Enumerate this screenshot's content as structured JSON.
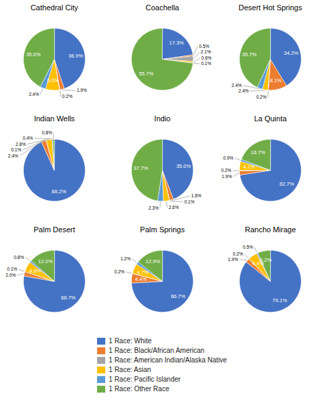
{
  "chart_data": [
    {
      "type": "pie",
      "title": "Cathedral City",
      "categories": [
        "1 Race: White",
        "1 Race: Black/African American",
        "1 Race: American Indian/Alaska Native",
        "1 Race: Asian",
        "1 Race: Pacific Islander",
        "1 Race: Other Race"
      ],
      "values": [
        36.9,
        1.9,
        0.2,
        6.0,
        2.4,
        35.0
      ],
      "value_labels": [
        "36.9%",
        "1.9%",
        "0.2%",
        "6.0%",
        "2.4%",
        "35.0%"
      ],
      "colors": [
        "#4472c4",
        "#ed7d31",
        "#a5a5a5",
        "#ffc000",
        "#5b9bd5",
        "#70ad47"
      ],
      "data_labels": true,
      "legend": "bottom"
    },
    {
      "type": "pie",
      "title": "Coachella",
      "categories": [
        "1 Race: White",
        "1 Race: Black/African American",
        "1 Race: American Indian/Alaska Native",
        "1 Race: Asian",
        "1 Race: Pacific Islander",
        "1 Race: Other Race"
      ],
      "values": [
        17.3,
        0.5,
        2.1,
        0.6,
        0.1,
        55.7
      ],
      "value_labels": [
        "17.3%",
        "0.5%",
        "2.1%",
        "0.6%",
        "0.1%",
        "55.7%"
      ],
      "colors": [
        "#4472c4",
        "#ed7d31",
        "#a5a5a5",
        "#ffc000",
        "#5b9bd5",
        "#70ad47"
      ],
      "data_labels": true,
      "legend": "bottom"
    },
    {
      "type": "pie",
      "title": "Desert Hot Springs",
      "categories": [
        "1 Race: White",
        "1 Race: Black/African American",
        "1 Race: American Indian/Alaska Native",
        "1 Race: Asian",
        "1 Race: Pacific Islander",
        "1 Race: Other Race"
      ],
      "values": [
        34.2,
        8.1,
        0.2,
        2.4,
        2.4,
        35.7
      ],
      "value_labels": [
        "34.2%",
        "8.1%",
        "0.2%",
        "2.4%",
        "2.4%",
        "35.7%"
      ],
      "colors": [
        "#4472c4",
        "#ed7d31",
        "#a5a5a5",
        "#ffc000",
        "#5b9bd5",
        "#70ad47"
      ],
      "data_labels": true,
      "legend": "bottom"
    },
    {
      "type": "pie",
      "title": "Indian Wells",
      "categories": [
        "1 Race: White",
        "1 Race: Black/African American",
        "1 Race: American Indian/Alaska Native",
        "1 Race: Asian",
        "1 Race: Pacific Islander",
        "1 Race: Other Race"
      ],
      "values": [
        88.2,
        2.4,
        0.1,
        2.8,
        0.4,
        0.8
      ],
      "value_labels": [
        "88.2%",
        "2.4%",
        "0.1%",
        "2.8%",
        "0.4%",
        "0.8%"
      ],
      "colors": [
        "#4472c4",
        "#ed7d31",
        "#a5a5a5",
        "#ffc000",
        "#5b9bd5",
        "#70ad47"
      ],
      "data_labels": true,
      "legend": "bottom"
    },
    {
      "type": "pie",
      "title": "Indio",
      "categories": [
        "1 Race: White",
        "1 Race: Black/African American",
        "1 Race: American Indian/Alaska Native",
        "1 Race: Asian",
        "1 Race: Pacific Islander",
        "1 Race: Other Race"
      ],
      "values": [
        35.0,
        1.6,
        0.1,
        2.6,
        2.3,
        37.7
      ],
      "value_labels": [
        "35.0%",
        "1.6%",
        "0.1%",
        "2.6%",
        "2.3%",
        "37.7%"
      ],
      "colors": [
        "#4472c4",
        "#ed7d31",
        "#a5a5a5",
        "#ffc000",
        "#5b9bd5",
        "#70ad47"
      ],
      "data_labels": true,
      "legend": "bottom"
    },
    {
      "type": "pie",
      "title": "La Quinta",
      "categories": [
        "1 Race: White",
        "1 Race: Black/African American",
        "1 Race: American Indian/Alaska Native",
        "1 Race: Asian",
        "1 Race: Pacific Islander",
        "1 Race: Other Race"
      ],
      "values": [
        62.7,
        1.9,
        0.2,
        4.1,
        0.9,
        16.7
      ],
      "value_labels": [
        "62.7%",
        "1.9%",
        "0.2%",
        "4.1%",
        "0.9%",
        "16.7%"
      ],
      "colors": [
        "#4472c4",
        "#ed7d31",
        "#a5a5a5",
        "#ffc000",
        "#5b9bd5",
        "#70ad47"
      ],
      "data_labels": true,
      "legend": "bottom"
    },
    {
      "type": "pie",
      "title": "Palm Desert",
      "categories": [
        "1 Race: White",
        "1 Race: Black/African American",
        "1 Race: American Indian/Alaska Native",
        "1 Race: Asian",
        "1 Race: Pacific Islander",
        "1 Race: Other Race"
      ],
      "values": [
        68.7,
        2.0,
        0.1,
        4.8,
        0.8,
        12.0
      ],
      "value_labels": [
        "68.7%",
        "2.0%",
        "0.1%",
        "4.8%",
        "0.8%",
        "12.0%"
      ],
      "colors": [
        "#4472c4",
        "#ed7d31",
        "#a5a5a5",
        "#ffc000",
        "#5b9bd5",
        "#70ad47"
      ],
      "data_labels": true,
      "legend": "bottom"
    },
    {
      "type": "pie",
      "title": "Palm Springs",
      "categories": [
        "1 Race: White",
        "1 Race: Black/African American",
        "1 Race: American Indian/Alaska Native",
        "1 Race: Asian",
        "1 Race: Pacific Islander",
        "1 Race: Other Race"
      ],
      "values": [
        66.7,
        4.4,
        0.2,
        4.7,
        1.2,
        12.9
      ],
      "value_labels": [
        "66.7%",
        "4.4%",
        "0.2%",
        "4.7%",
        "1.2%",
        "12.9%"
      ],
      "colors": [
        "#4472c4",
        "#ed7d31",
        "#a5a5a5",
        "#ffc000",
        "#5b9bd5",
        "#70ad47"
      ],
      "data_labels": true,
      "legend": "bottom"
    },
    {
      "type": "pie",
      "title": "Rancho Mirage",
      "categories": [
        "1 Race: White",
        "1 Race: Black/African American",
        "1 Race: American Indian/Alaska Native",
        "1 Race: Asian",
        "1 Race: Pacific Islander",
        "1 Race: Other Race"
      ],
      "values": [
        79.1,
        1.9,
        0.2,
        4.4,
        0.5,
        6.2
      ],
      "value_labels": [
        "79.1%",
        "1.9%",
        "0.2%",
        "4.4%",
        "0.5%",
        "6.2%"
      ],
      "colors": [
        "#4472c4",
        "#ed7d31",
        "#a5a5a5",
        "#ffc000",
        "#5b9bd5",
        "#70ad47"
      ],
      "data_labels": true,
      "legend": "bottom"
    }
  ]
}
